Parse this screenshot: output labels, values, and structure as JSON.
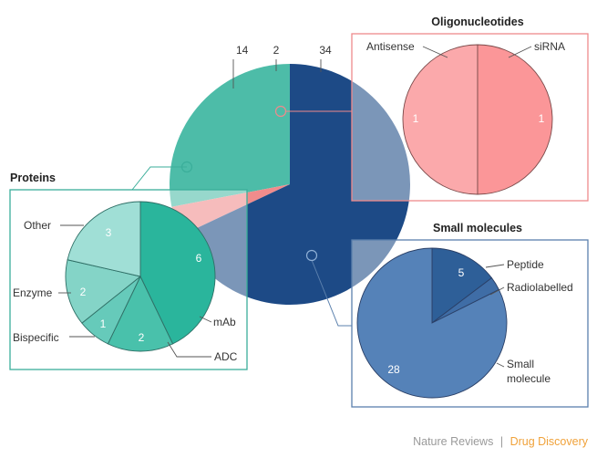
{
  "chart_data": [
    {
      "type": "pie",
      "title": "",
      "categories": [
        "Proteins",
        "Oligonucleotides",
        "Small molecules"
      ],
      "values": [
        14,
        2,
        34
      ],
      "colors": [
        "#4dbca8",
        "#f08c8c",
        "#1d4a86"
      ]
    },
    {
      "type": "pie",
      "title": "Proteins",
      "categories": [
        "mAb",
        "ADC",
        "Bispecific",
        "Enzyme",
        "Other"
      ],
      "values": [
        6,
        2,
        1,
        2,
        3
      ],
      "colors": [
        "#2ab59c",
        "#49c1ab",
        "#66caba",
        "#84d4c7",
        "#a0dfd6"
      ]
    },
    {
      "type": "pie",
      "title": "Oligonucleotides",
      "categories": [
        "Antisense",
        "siRNA"
      ],
      "values": [
        1,
        1
      ],
      "colors": [
        "#fba9ab",
        "#fb9698"
      ]
    },
    {
      "type": "pie",
      "title": "Small molecules",
      "categories": [
        "Peptide",
        "Radiolabelled",
        "Small molecule"
      ],
      "values": [
        5,
        1,
        28
      ],
      "colors": [
        "#2e5f98",
        "#3f6da6",
        "#5582b8"
      ]
    }
  ],
  "labels": {
    "small_molecule_line1": "Small",
    "small_molecule_line2": "molecule"
  },
  "footer": {
    "brand": "Nature Reviews",
    "separator": "|",
    "journal": "Drug Discovery"
  },
  "colors": {
    "frame_teal": "#3aae9a",
    "frame_pink": "#ef8a8c",
    "frame_blue": "#5b80ad",
    "leader": "#555555",
    "brand_grey": "#9a9a9a",
    "brand_orange": "#f0a23a"
  }
}
